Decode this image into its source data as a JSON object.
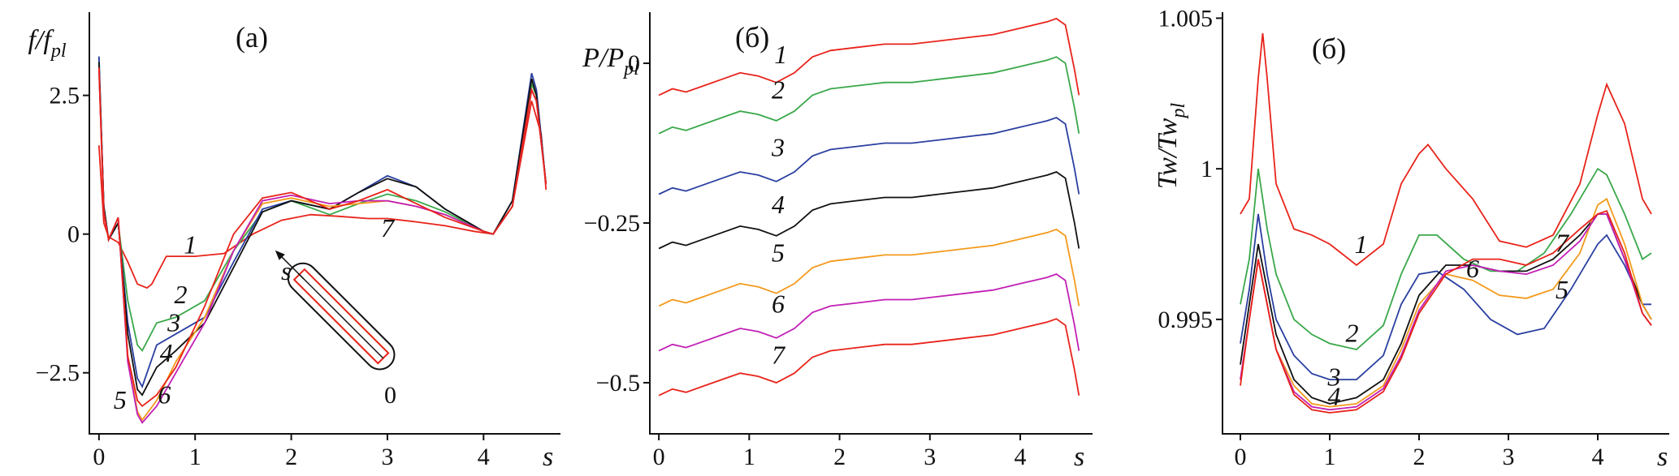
{
  "colors": {
    "1": "#e8231a",
    "2": "#3aa84a",
    "3": "#2a3fa0",
    "4": "#111111",
    "5": "#f39a1c",
    "6": "#c21fb5",
    "7": "#e8231a"
  },
  "chart_data": [
    {
      "type": "line",
      "panel_title": "(a)",
      "ylabel_main": "f/f",
      "ylabel_sub": "pl",
      "xlabel": "s",
      "xlim": [
        -0.1,
        4.8
      ],
      "ylim": [
        -3.6,
        4.0
      ],
      "xticks": [
        {
          "v": 0,
          "label": "0"
        },
        {
          "v": 1,
          "label": "1"
        },
        {
          "v": 2,
          "label": "2"
        },
        {
          "v": 3,
          "label": "3"
        },
        {
          "v": 4,
          "label": "4"
        }
      ],
      "yticks": [
        {
          "v": 2.5,
          "label": "2.5"
        },
        {
          "v": 0,
          "label": "0"
        },
        {
          "v": -2.5,
          "label": "−2.5"
        }
      ],
      "inset": {
        "s_label": "s",
        "zero_label": "0"
      },
      "series": [
        {
          "name": "1",
          "label": "1",
          "label_at": [
            0.95,
            -0.35
          ],
          "color_key": "1",
          "x": [
            0,
            0.05,
            0.1,
            0.2,
            0.3,
            0.4,
            0.5,
            0.55,
            0.7,
            1.0,
            1.3,
            1.6,
            1.9,
            2.2,
            2.5,
            2.8,
            3.0,
            3.3,
            3.6,
            3.9,
            4.1,
            4.3,
            4.5,
            4.6,
            4.65
          ],
          "y": [
            1.6,
            0.2,
            -0.05,
            -0.15,
            -0.5,
            -0.9,
            -0.97,
            -0.9,
            -0.4,
            -0.4,
            -0.35,
            0,
            0.25,
            0.35,
            0.32,
            0.28,
            0.28,
            0.22,
            0.15,
            0.05,
            0,
            0.5,
            2.4,
            1.8,
            0.8
          ]
        },
        {
          "name": "2",
          "label": "2",
          "label_at": [
            0.85,
            -1.25
          ],
          "color_key": "2",
          "x": [
            0,
            0.05,
            0.1,
            0.2,
            0.3,
            0.4,
            0.45,
            0.6,
            0.8,
            1.1,
            1.4,
            1.7,
            2.0,
            2.4,
            2.7,
            3.0,
            3.3,
            3.6,
            4.0,
            4.1,
            4.3,
            4.5,
            4.55,
            4.65
          ],
          "y": [
            3.2,
            0.5,
            -0.1,
            0.2,
            -1.2,
            -2.0,
            -2.1,
            -1.6,
            -1.5,
            -1.2,
            -0.3,
            0.4,
            0.6,
            0.35,
            0.55,
            0.72,
            0.6,
            0.4,
            0.05,
            0,
            0.5,
            2.7,
            2.5,
            0.9
          ]
        },
        {
          "name": "3",
          "label": "3",
          "label_at": [
            0.78,
            -1.75
          ],
          "color_key": "3",
          "x": [
            0,
            0.05,
            0.1,
            0.2,
            0.3,
            0.4,
            0.45,
            0.6,
            0.8,
            1.1,
            1.4,
            1.7,
            2.0,
            2.4,
            2.7,
            3.0,
            3.3,
            3.6,
            4.0,
            4.1,
            4.3,
            4.5,
            4.55,
            4.65
          ],
          "y": [
            3.2,
            0.5,
            -0.1,
            0.2,
            -1.6,
            -2.6,
            -2.75,
            -2.0,
            -1.8,
            -1.5,
            -0.5,
            0.45,
            0.6,
            0.45,
            0.75,
            1.05,
            0.85,
            0.45,
            0.05,
            0,
            0.6,
            2.9,
            2.6,
            0.9
          ]
        },
        {
          "name": "4",
          "label": "4",
          "label_at": [
            0.7,
            -2.3
          ],
          "color_key": "4",
          "x": [
            0,
            0.05,
            0.1,
            0.2,
            0.3,
            0.4,
            0.45,
            0.6,
            0.8,
            1.1,
            1.4,
            1.7,
            2.0,
            2.4,
            2.7,
            3.0,
            3.3,
            3.6,
            4.0,
            4.1,
            4.3,
            4.5,
            4.55,
            4.65
          ],
          "y": [
            3.1,
            0.5,
            -0.1,
            0.2,
            -1.8,
            -2.8,
            -2.9,
            -2.4,
            -2.1,
            -1.6,
            -0.6,
            0.4,
            0.6,
            0.45,
            0.75,
            1.0,
            0.85,
            0.45,
            0.05,
            0,
            0.6,
            2.8,
            2.5,
            0.9
          ]
        },
        {
          "name": "5",
          "label": "5",
          "label_at": [
            0.22,
            -3.15
          ],
          "color_key": "5",
          "x": [
            0,
            0.05,
            0.1,
            0.2,
            0.3,
            0.4,
            0.45,
            0.6,
            0.8,
            1.1,
            1.4,
            1.7,
            2.0,
            2.4,
            2.7,
            3.0,
            3.3,
            3.6,
            4.0,
            4.1,
            4.3,
            4.5,
            4.55,
            4.65
          ],
          "y": [
            3.0,
            0.4,
            -0.1,
            0.3,
            -2.2,
            -3.2,
            -3.35,
            -3.0,
            -2.3,
            -1.5,
            -0.3,
            0.55,
            0.65,
            0.5,
            0.55,
            0.6,
            0.5,
            0.35,
            0.05,
            0,
            0.5,
            2.6,
            2.4,
            0.9
          ]
        },
        {
          "name": "6",
          "label": "6",
          "label_at": [
            0.68,
            -3.05
          ],
          "color_key": "6",
          "x": [
            0,
            0.05,
            0.1,
            0.2,
            0.3,
            0.4,
            0.45,
            0.6,
            0.8,
            1.1,
            1.4,
            1.7,
            2.0,
            2.4,
            2.7,
            3.0,
            3.3,
            3.6,
            4.0,
            4.1,
            4.3,
            4.5,
            4.55,
            4.65
          ],
          "y": [
            3.0,
            0.4,
            -0.1,
            0.3,
            -2.3,
            -3.25,
            -3.4,
            -3.1,
            -2.5,
            -1.6,
            -0.3,
            0.6,
            0.7,
            0.55,
            0.6,
            0.6,
            0.5,
            0.35,
            0.05,
            0,
            0.5,
            2.6,
            2.4,
            0.9
          ]
        },
        {
          "name": "7",
          "label": "7",
          "label_at": [
            3.0,
            -0.05
          ],
          "color_key": "7",
          "x": [
            0,
            0.05,
            0.1,
            0.2,
            0.3,
            0.4,
            0.45,
            0.6,
            0.8,
            1.1,
            1.4,
            1.7,
            2.0,
            2.4,
            2.7,
            3.0,
            3.3,
            3.6,
            4.0,
            4.1,
            4.3,
            4.5,
            4.55,
            4.65
          ],
          "y": [
            3.0,
            0.4,
            -0.1,
            0.3,
            -2.2,
            -3.0,
            -3.1,
            -2.9,
            -2.4,
            -1.3,
            0,
            0.65,
            0.75,
            0.45,
            0.6,
            0.8,
            0.55,
            0.3,
            0.05,
            0,
            0.5,
            2.6,
            2.4,
            0.9
          ]
        }
      ]
    },
    {
      "type": "line",
      "panel_title": "(б)",
      "ylabel_main": "P/P",
      "ylabel_sub": "pl",
      "xlabel": "s",
      "xlim": [
        -0.1,
        4.8
      ],
      "ylim": [
        -0.58,
        0.08
      ],
      "xticks": [
        {
          "v": 0,
          "label": "0"
        },
        {
          "v": 1,
          "label": "1"
        },
        {
          "v": 2,
          "label": "2"
        },
        {
          "v": 3,
          "label": "3"
        },
        {
          "v": 4,
          "label": "4"
        }
      ],
      "yticks": [
        {
          "v": 0,
          "label": "0"
        },
        {
          "v": -0.25,
          "label": "−0.25"
        },
        {
          "v": -0.5,
          "label": "−0.5"
        }
      ],
      "series": [
        {
          "name": "1",
          "label": "1",
          "label_at": [
            1.35,
            0.0
          ],
          "color_key": "1",
          "offset": 0.0
        },
        {
          "name": "2",
          "label": "2",
          "label_at": [
            1.32,
            -0.055
          ],
          "color_key": "2",
          "offset": -0.06
        },
        {
          "name": "3",
          "label": "3",
          "label_at": [
            1.32,
            -0.145
          ],
          "color_key": "3",
          "offset": -0.155
        },
        {
          "name": "4",
          "label": "4",
          "label_at": [
            1.32,
            -0.235
          ],
          "color_key": "4",
          "offset": -0.24
        },
        {
          "name": "5",
          "label": "5",
          "label_at": [
            1.32,
            -0.31
          ],
          "color_key": "5",
          "offset": -0.33
        },
        {
          "name": "6",
          "label": "6",
          "label_at": [
            1.32,
            -0.39
          ],
          "color_key": "6",
          "offset": -0.4
        },
        {
          "name": "7",
          "label": "7",
          "label_at": [
            1.32,
            -0.47
          ],
          "color_key": "7",
          "offset": -0.47
        }
      ],
      "base_shape": {
        "x": [
          0,
          0.15,
          0.3,
          0.5,
          0.7,
          0.9,
          1.1,
          1.3,
          1.5,
          1.7,
          1.9,
          2.2,
          2.5,
          2.8,
          3.1,
          3.4,
          3.7,
          4.0,
          4.3,
          4.4,
          4.5,
          4.6,
          4.65
        ],
        "y": [
          -0.05,
          -0.04,
          -0.045,
          -0.035,
          -0.025,
          -0.015,
          -0.02,
          -0.03,
          -0.015,
          0.01,
          0.02,
          0.025,
          0.03,
          0.03,
          0.035,
          0.04,
          0.045,
          0.055,
          0.065,
          0.07,
          0.06,
          -0.01,
          -0.05
        ]
      }
    },
    {
      "type": "line",
      "panel_title": "(б)",
      "ylabel_main": "Tw/Tw",
      "ylabel_sub": "pl",
      "xlabel": "s",
      "xlim": [
        -0.2,
        4.8
      ],
      "ylim": [
        0.9912,
        1.0052
      ],
      "xticks": [
        {
          "v": 0,
          "label": "0"
        },
        {
          "v": 1,
          "label": "1"
        },
        {
          "v": 2,
          "label": "2"
        },
        {
          "v": 3,
          "label": "3"
        },
        {
          "v": 4,
          "label": "4"
        }
      ],
      "yticks": [
        {
          "v": 1.005,
          "label": "1.005"
        },
        {
          "v": 1.0,
          "label": "1"
        },
        {
          "v": 0.995,
          "label": "0.995"
        }
      ],
      "series": [
        {
          "name": "1",
          "label": "1",
          "label_at": [
            1.35,
            0.9972
          ],
          "color_key": "1",
          "x": [
            0,
            0.1,
            0.2,
            0.25,
            0.3,
            0.4,
            0.6,
            0.8,
            1.0,
            1.3,
            1.6,
            1.8,
            2.0,
            2.1,
            2.3,
            2.6,
            2.9,
            3.2,
            3.5,
            3.8,
            4.0,
            4.1,
            4.3,
            4.5,
            4.6
          ],
          "y": [
            0.9985,
            0.999,
            1.003,
            1.0045,
            1.003,
            0.9995,
            0.998,
            0.9978,
            0.9975,
            0.9968,
            0.9975,
            0.9995,
            1.0005,
            1.0008,
            1.0,
            0.999,
            0.9976,
            0.9974,
            0.9978,
            0.9995,
            1.0018,
            1.0028,
            1.0015,
            0.999,
            0.9985
          ]
        },
        {
          "name": "2",
          "label": "2",
          "label_at": [
            1.25,
            0.99425
          ],
          "color_key": "2",
          "x": [
            0,
            0.1,
            0.2,
            0.3,
            0.4,
            0.6,
            0.8,
            1.0,
            1.3,
            1.6,
            1.8,
            2.0,
            2.2,
            2.5,
            2.8,
            3.1,
            3.4,
            3.7,
            4.0,
            4.1,
            4.3,
            4.5,
            4.6
          ],
          "y": [
            0.9955,
            0.997,
            1.0,
            0.998,
            0.9965,
            0.995,
            0.9945,
            0.9942,
            0.994,
            0.9948,
            0.9965,
            0.9978,
            0.9978,
            0.997,
            0.9966,
            0.9966,
            0.9972,
            0.9985,
            1.0,
            0.9998,
            0.9985,
            0.997,
            0.9972
          ]
        },
        {
          "name": "3",
          "label": "3",
          "label_at": [
            1.05,
            0.9928
          ],
          "color_key": "3",
          "x": [
            0,
            0.1,
            0.2,
            0.3,
            0.4,
            0.6,
            0.8,
            1.0,
            1.3,
            1.6,
            1.8,
            2.0,
            2.2,
            2.5,
            2.8,
            3.1,
            3.4,
            3.7,
            4.0,
            4.1,
            4.3,
            4.5,
            4.6
          ],
          "y": [
            0.9942,
            0.996,
            0.9985,
            0.9965,
            0.995,
            0.9938,
            0.9932,
            0.993,
            0.993,
            0.9938,
            0.9955,
            0.9965,
            0.9966,
            0.996,
            0.995,
            0.9945,
            0.9947,
            0.996,
            0.9975,
            0.9978,
            0.9968,
            0.9955,
            0.9955
          ]
        },
        {
          "name": "4",
          "label": "4",
          "label_at": [
            1.05,
            0.99215
          ],
          "color_key": "4",
          "x": [
            0,
            0.1,
            0.2,
            0.3,
            0.4,
            0.6,
            0.8,
            1.0,
            1.3,
            1.6,
            1.8,
            2.0,
            2.3,
            2.6,
            2.9,
            3.2,
            3.5,
            3.8,
            4.0,
            4.1,
            4.3,
            4.5,
            4.6
          ],
          "y": [
            0.9935,
            0.9955,
            0.9975,
            0.996,
            0.9945,
            0.993,
            0.9924,
            0.9922,
            0.9924,
            0.993,
            0.9942,
            0.9958,
            0.9968,
            0.9968,
            0.9966,
            0.9966,
            0.997,
            0.9978,
            0.9985,
            0.9985,
            0.997,
            0.9955,
            0.995
          ]
        },
        {
          "name": "5",
          "label": "5",
          "label_at": [
            3.6,
            0.9957
          ],
          "color_key": "5",
          "x": [
            0,
            0.1,
            0.2,
            0.3,
            0.4,
            0.6,
            0.8,
            1.0,
            1.3,
            1.6,
            1.8,
            2.0,
            2.3,
            2.6,
            2.9,
            3.2,
            3.5,
            3.8,
            4.0,
            4.1,
            4.3,
            4.5,
            4.6
          ],
          "y": [
            0.993,
            0.995,
            0.997,
            0.9955,
            0.994,
            0.9928,
            0.9922,
            0.9921,
            0.9922,
            0.9928,
            0.994,
            0.9955,
            0.9965,
            0.9963,
            0.9958,
            0.9957,
            0.996,
            0.9972,
            0.9988,
            0.999,
            0.9975,
            0.9955,
            0.995
          ]
        },
        {
          "name": "6",
          "label": "6",
          "label_at": [
            2.6,
            0.9964
          ],
          "color_key": "6",
          "x": [
            0,
            0.1,
            0.2,
            0.3,
            0.4,
            0.6,
            0.8,
            1.0,
            1.3,
            1.6,
            1.8,
            2.0,
            2.3,
            2.6,
            2.9,
            3.2,
            3.5,
            3.8,
            4.0,
            4.1,
            4.3,
            4.5,
            4.6
          ],
          "y": [
            0.993,
            0.995,
            0.997,
            0.9955,
            0.994,
            0.9926,
            0.9921,
            0.992,
            0.9921,
            0.9927,
            0.9938,
            0.9953,
            0.9966,
            0.9968,
            0.9966,
            0.9965,
            0.9968,
            0.9976,
            0.9985,
            0.9985,
            0.997,
            0.9952,
            0.9948
          ]
        },
        {
          "name": "7",
          "label": "7",
          "label_at": [
            3.6,
            0.99725
          ],
          "color_key": "7",
          "x": [
            0,
            0.1,
            0.2,
            0.3,
            0.4,
            0.6,
            0.8,
            1.0,
            1.3,
            1.6,
            1.8,
            2.0,
            2.3,
            2.6,
            2.9,
            3.2,
            3.5,
            3.8,
            4.0,
            4.1,
            4.3,
            4.5,
            4.6
          ],
          "y": [
            0.9928,
            0.995,
            0.997,
            0.9955,
            0.994,
            0.9925,
            0.992,
            0.9919,
            0.992,
            0.9926,
            0.9937,
            0.9952,
            0.9965,
            0.997,
            0.997,
            0.9968,
            0.9972,
            0.998,
            0.9985,
            0.9986,
            0.9972,
            0.9952,
            0.9948
          ]
        }
      ]
    }
  ]
}
